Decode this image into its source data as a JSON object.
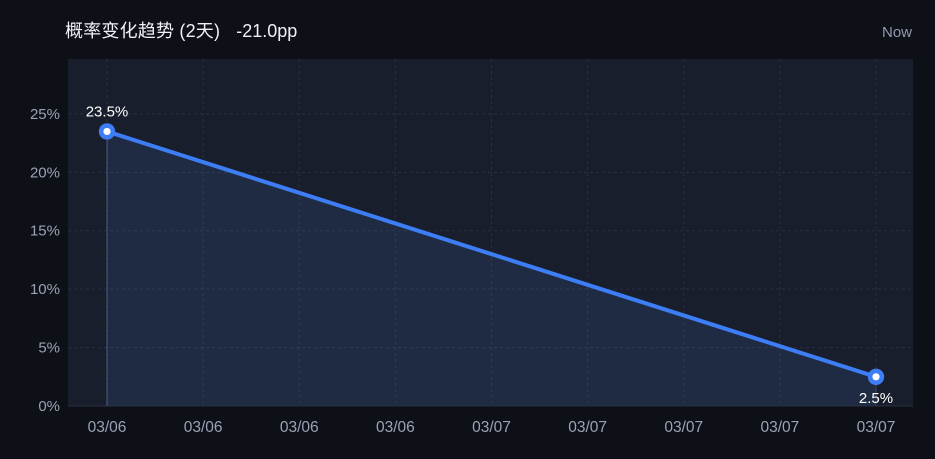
{
  "header": {
    "title": "概率变化趋势 (2天)",
    "delta": "-21.0pp",
    "now_label": "Now"
  },
  "colors": {
    "background": "#0d1017",
    "plot_background": "#191e2c",
    "area_fill": "rgba(77, 130, 215, 0.13)",
    "area_edge": "rgba(120, 150, 210, 0.45)",
    "area_edge_faint": "rgba(120, 150, 210, 0.25)",
    "grid": "rgba(148, 166, 205, 0.14)",
    "axis_line": "#2a3142",
    "axis_text": "#9aa2b6",
    "label_text": "#ffffff",
    "accent_blue": "#3d7ef6",
    "point_center": "#ffffff"
  },
  "chart_data": {
    "type": "line",
    "title": "概率变化趋势 (2天)",
    "subtitle": "-21.0pp",
    "xlabel": "",
    "ylabel": "",
    "grid": "dashed",
    "legend_position": "none",
    "ylim": [
      0,
      29.7
    ],
    "y_ticks": [
      0,
      5,
      10,
      15,
      20,
      25
    ],
    "y_tick_labels": [
      "0%",
      "5%",
      "10%",
      "15%",
      "20%",
      "25%"
    ],
    "x_tick_labels": [
      "03/06",
      "03/06",
      "03/06",
      "03/06",
      "03/07",
      "03/07",
      "03/07",
      "03/07",
      "03/07"
    ],
    "series": [
      {
        "name": "probability",
        "points": [
          {
            "x_index": 0,
            "x_label": "03/06",
            "value": 23.5,
            "label": "23.5%",
            "label_position": "top"
          },
          {
            "x_index": 8,
            "x_label": "03/07",
            "value": 2.5,
            "label": "2.5%",
            "label_position": "bottom"
          }
        ]
      }
    ]
  }
}
